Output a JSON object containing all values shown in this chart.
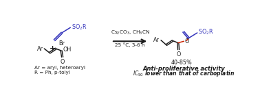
{
  "bg_color": "#ffffff",
  "blue_color": "#3333bb",
  "red_color": "#cc2200",
  "black_color": "#1a1a1a",
  "figsize": [
    3.78,
    1.3
  ],
  "dpi": 100,
  "reagent_line1": "Cs$_2$CO$_3$, CH$_3$CN",
  "reagent_line2": "25 °C, 3-6 h",
  "yield_text": "40-85%",
  "activity_line1": "Anti-proliferative activity",
  "activity_line2": "$\\mathit{IC}_{50}$ lower than that of carboplatin",
  "ar_def": "Ar = aryl, heteroaryl",
  "r_def": "R = Ph, p-tolyl",
  "so2r_text": "SO$_2$R",
  "br_text": "Br",
  "ar_text": "Ar",
  "oh_text": "OH",
  "plus_text": "+",
  "o_text": "O",
  "o2_text": "O"
}
